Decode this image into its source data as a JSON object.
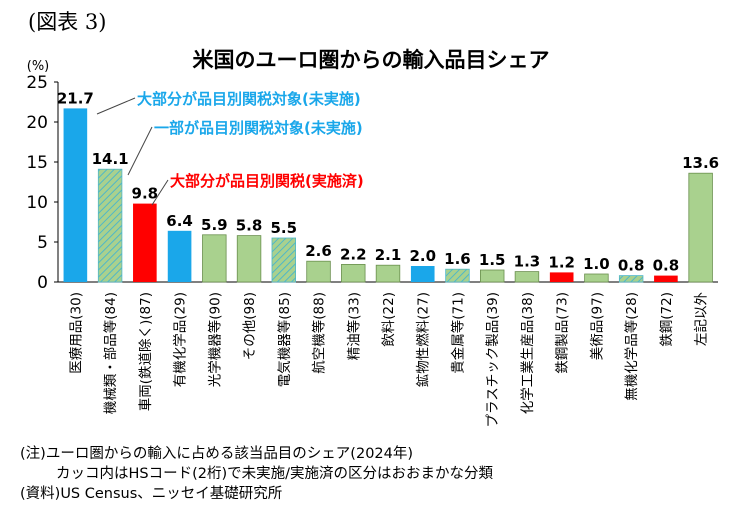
{
  "figure_label": "(図表 3)",
  "chart_data": {
    "type": "bar",
    "title": "米国のユーロ圏からの輸入品目シェア",
    "ylabel": "(%)",
    "ylim": [
      0,
      25
    ],
    "yticks": [
      0,
      5,
      10,
      15,
      20,
      25
    ],
    "grid": false,
    "categories": [
      "医療用品(30)",
      "機械類・部品等(84)",
      "車両(鉄道除く)(87)",
      "有機化学品(29)",
      "光学機器等(90)",
      "その他(98)",
      "電気機器等(85)",
      "航空機等(88)",
      "精油等(33)",
      "飲料(22)",
      "鉱物性燃料(27)",
      "貴金属等(71)",
      "プラスチック製品(39)",
      "化学工業生産品(38)",
      "鉄鋼製品(73)",
      "美術品(97)",
      "無機化学品等(28)",
      "鉄鋼(72)",
      "左記以外"
    ],
    "values": [
      21.7,
      14.1,
      9.8,
      6.4,
      5.9,
      5.8,
      5.5,
      2.6,
      2.2,
      2.1,
      2.0,
      1.6,
      1.5,
      1.3,
      1.2,
      1.0,
      0.8,
      0.8,
      13.6
    ],
    "value_labels": [
      "21.7",
      "14.1",
      "9.8",
      "6.4",
      "5.9",
      "5.8",
      "5.5",
      "2.6",
      "2.2",
      "2.1",
      "2.0",
      "1.6",
      "1.5",
      "1.3",
      "1.2",
      "1.0",
      "0.8",
      "0.8",
      "13.6"
    ],
    "groups": [
      "blue",
      "hatch",
      "red",
      "blue",
      "green",
      "green",
      "hatch",
      "green",
      "green",
      "green",
      "blue",
      "hatch",
      "green",
      "green",
      "red",
      "green",
      "hatch",
      "red",
      "green"
    ],
    "group_colors": {
      "blue": "#1aa7ea",
      "red": "#ff0000",
      "green": "#a9d18e",
      "hatch": "#a9d18e",
      "hatch_line": "#4fb7c8"
    },
    "annotations": [
      {
        "text": "大部分が品目別関税対象(未実施)",
        "color": "#1aa7ea",
        "target_index": 0
      },
      {
        "text": "一部が品目別関税対象(未実施)",
        "color": "#1aa7ea",
        "target_index": 1
      },
      {
        "text": "大部分が品目別関税(実施済)",
        "color": "#ff0000",
        "target_index": 2
      }
    ]
  },
  "notes": {
    "line1": "(注)ユーロ圏からの輸入に占める該当品目のシェア(2024年)",
    "line2": "カッコ内はHSコード(2桁)で未実施/実施済の区分はおおまかな分類",
    "line3": "(資料)US Census、ニッセイ基礎研究所"
  }
}
